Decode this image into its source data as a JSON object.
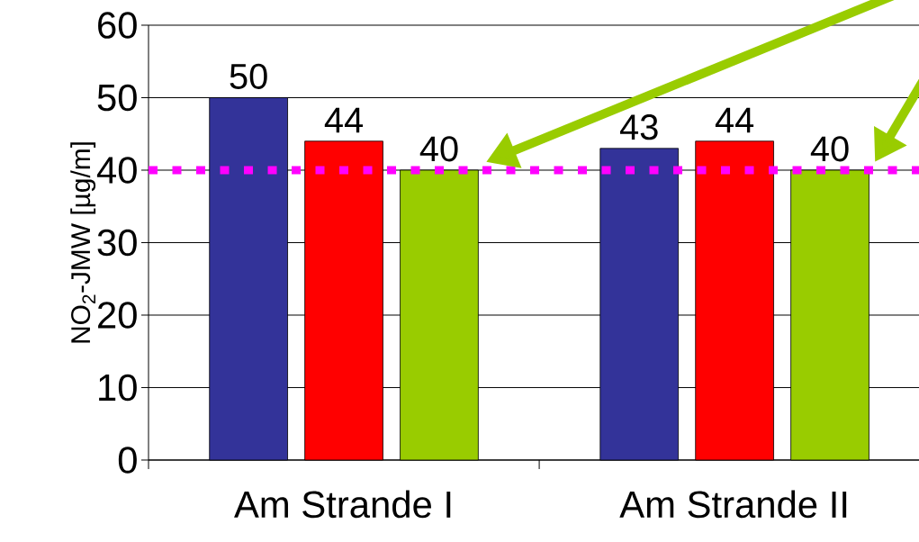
{
  "chart_data": {
    "type": "bar",
    "ylabel": "NO$_{2}$-JMW [µg/m]",
    "categories": [
      "Am Strande I",
      "Am Strande II"
    ],
    "series": [
      {
        "color": "#333399",
        "values": [
          50,
          43
        ]
      },
      {
        "color": "#ff0000",
        "values": [
          44,
          44
        ]
      },
      {
        "color": "#99cc00",
        "values": [
          40,
          40
        ]
      }
    ],
    "ylim": [
      0,
      60
    ],
    "yticks": [
      0,
      10,
      20,
      30,
      40,
      50,
      60
    ],
    "grid": "y",
    "data_labels": true,
    "ref_lines": [
      {
        "axis": "y",
        "value": 40,
        "color": "#ff00ff",
        "line_style": "dotted"
      }
    ]
  }
}
